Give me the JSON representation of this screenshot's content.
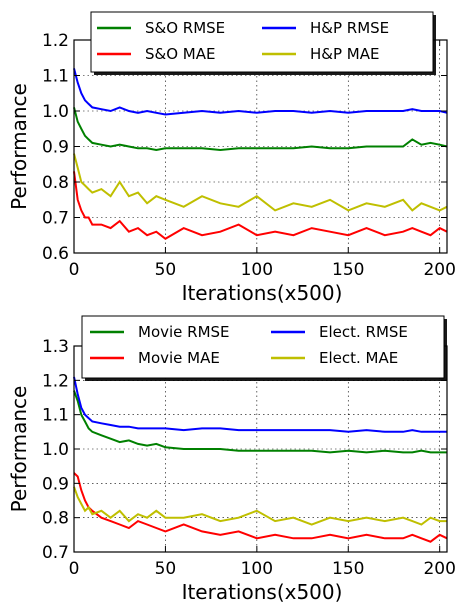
{
  "chart_data": [
    {
      "type": "line",
      "xlabel": "Iterations(x500)",
      "ylabel": "Performance",
      "xlim": [
        0,
        204
      ],
      "ylim": [
        0.6,
        1.2
      ],
      "xticks": [
        0,
        50,
        100,
        150,
        200
      ],
      "yticks": [
        0.6,
        0.7,
        0.8,
        0.9,
        1.0,
        1.1,
        1.2
      ],
      "grid": true,
      "legend_position": "top",
      "series": [
        {
          "name": "S&O RMSE",
          "color": "#008000",
          "x": [
            0,
            2,
            4,
            6,
            8,
            10,
            15,
            20,
            25,
            30,
            35,
            40,
            45,
            50,
            60,
            70,
            80,
            90,
            100,
            110,
            120,
            130,
            140,
            150,
            160,
            170,
            180,
            185,
            190,
            195,
            200,
            204
          ],
          "y": [
            1.01,
            0.97,
            0.95,
            0.93,
            0.92,
            0.91,
            0.905,
            0.9,
            0.905,
            0.9,
            0.895,
            0.895,
            0.89,
            0.895,
            0.895,
            0.895,
            0.89,
            0.895,
            0.895,
            0.895,
            0.895,
            0.9,
            0.895,
            0.895,
            0.9,
            0.9,
            0.9,
            0.92,
            0.905,
            0.91,
            0.905,
            0.9
          ]
        },
        {
          "name": "S&O MAE",
          "color": "#ff0000",
          "x": [
            0,
            2,
            4,
            6,
            8,
            10,
            15,
            20,
            25,
            30,
            35,
            40,
            45,
            50,
            60,
            70,
            80,
            90,
            100,
            110,
            120,
            130,
            140,
            150,
            160,
            170,
            180,
            185,
            190,
            195,
            200,
            204
          ],
          "y": [
            0.83,
            0.75,
            0.72,
            0.7,
            0.7,
            0.68,
            0.68,
            0.67,
            0.69,
            0.66,
            0.67,
            0.65,
            0.66,
            0.64,
            0.67,
            0.65,
            0.66,
            0.68,
            0.65,
            0.66,
            0.65,
            0.67,
            0.66,
            0.65,
            0.67,
            0.65,
            0.66,
            0.67,
            0.66,
            0.65,
            0.67,
            0.66
          ]
        },
        {
          "name": "H&P RMSE",
          "color": "#0000ff",
          "x": [
            0,
            2,
            4,
            6,
            8,
            10,
            15,
            20,
            25,
            30,
            35,
            40,
            45,
            50,
            60,
            70,
            80,
            90,
            100,
            110,
            120,
            130,
            140,
            150,
            160,
            170,
            180,
            185,
            190,
            195,
            200,
            204
          ],
          "y": [
            1.12,
            1.08,
            1.05,
            1.03,
            1.02,
            1.01,
            1.005,
            1.0,
            1.01,
            1.0,
            0.995,
            1.0,
            0.995,
            0.99,
            0.995,
            1.0,
            0.995,
            1.0,
            0.995,
            1.0,
            1.0,
            0.995,
            1.0,
            0.995,
            1.0,
            1.0,
            1.0,
            1.005,
            1.0,
            1.0,
            1.0,
            0.995
          ]
        },
        {
          "name": "H&P MAE",
          "color": "#bfbf00",
          "x": [
            0,
            2,
            4,
            6,
            8,
            10,
            15,
            20,
            25,
            30,
            35,
            40,
            45,
            50,
            60,
            70,
            80,
            90,
            100,
            110,
            120,
            130,
            140,
            150,
            160,
            170,
            180,
            185,
            190,
            195,
            200,
            204
          ],
          "y": [
            0.88,
            0.84,
            0.8,
            0.79,
            0.78,
            0.77,
            0.78,
            0.76,
            0.8,
            0.76,
            0.77,
            0.74,
            0.76,
            0.75,
            0.73,
            0.76,
            0.74,
            0.73,
            0.76,
            0.72,
            0.74,
            0.73,
            0.75,
            0.72,
            0.74,
            0.73,
            0.75,
            0.72,
            0.74,
            0.73,
            0.72,
            0.73
          ]
        }
      ]
    },
    {
      "type": "line",
      "xlabel": "Iterations(x500)",
      "ylabel": "Performance",
      "xlim": [
        0,
        204
      ],
      "ylim": [
        0.7,
        1.3
      ],
      "xticks": [
        0,
        50,
        100,
        150,
        200
      ],
      "yticks": [
        0.7,
        0.8,
        0.9,
        1.0,
        1.1,
        1.2,
        1.3
      ],
      "grid": true,
      "legend_position": "top",
      "series": [
        {
          "name": "Movie RMSE",
          "color": "#008000",
          "x": [
            0,
            2,
            4,
            6,
            8,
            10,
            15,
            20,
            25,
            30,
            35,
            40,
            45,
            50,
            60,
            70,
            80,
            90,
            100,
            110,
            120,
            130,
            140,
            150,
            160,
            170,
            180,
            185,
            190,
            195,
            200,
            204
          ],
          "y": [
            1.17,
            1.14,
            1.1,
            1.08,
            1.06,
            1.05,
            1.04,
            1.03,
            1.02,
            1.025,
            1.015,
            1.01,
            1.015,
            1.005,
            1.0,
            1.0,
            1.0,
            0.995,
            0.995,
            0.995,
            0.995,
            0.995,
            0.99,
            0.995,
            0.99,
            0.995,
            0.99,
            0.99,
            0.995,
            0.99,
            0.99,
            0.99
          ]
        },
        {
          "name": "Movie MAE",
          "color": "#ff0000",
          "x": [
            0,
            2,
            4,
            6,
            8,
            10,
            15,
            20,
            25,
            30,
            35,
            40,
            45,
            50,
            60,
            70,
            80,
            90,
            100,
            110,
            120,
            130,
            140,
            150,
            160,
            170,
            180,
            185,
            190,
            195,
            200,
            204
          ],
          "y": [
            0.93,
            0.92,
            0.88,
            0.85,
            0.83,
            0.82,
            0.8,
            0.79,
            0.78,
            0.77,
            0.79,
            0.78,
            0.77,
            0.76,
            0.78,
            0.76,
            0.75,
            0.76,
            0.74,
            0.75,
            0.74,
            0.74,
            0.75,
            0.74,
            0.75,
            0.74,
            0.74,
            0.75,
            0.74,
            0.73,
            0.75,
            0.74
          ]
        },
        {
          "name": "Elect. RMSE",
          "color": "#0000ff",
          "x": [
            0,
            2,
            4,
            6,
            8,
            10,
            15,
            20,
            25,
            30,
            35,
            40,
            45,
            50,
            60,
            70,
            80,
            90,
            100,
            110,
            120,
            130,
            140,
            150,
            160,
            170,
            180,
            185,
            190,
            195,
            200,
            204
          ],
          "y": [
            1.21,
            1.16,
            1.12,
            1.1,
            1.09,
            1.08,
            1.075,
            1.07,
            1.065,
            1.065,
            1.06,
            1.06,
            1.06,
            1.06,
            1.055,
            1.06,
            1.06,
            1.055,
            1.055,
            1.055,
            1.055,
            1.055,
            1.055,
            1.05,
            1.055,
            1.05,
            1.05,
            1.055,
            1.05,
            1.05,
            1.05,
            1.05
          ]
        },
        {
          "name": "Elect. MAE",
          "color": "#bfbf00",
          "x": [
            0,
            2,
            4,
            6,
            8,
            10,
            15,
            20,
            25,
            30,
            35,
            40,
            45,
            50,
            60,
            70,
            80,
            90,
            100,
            110,
            120,
            130,
            140,
            150,
            160,
            170,
            180,
            185,
            190,
            195,
            200,
            204
          ],
          "y": [
            0.89,
            0.86,
            0.84,
            0.82,
            0.83,
            0.81,
            0.82,
            0.8,
            0.82,
            0.79,
            0.81,
            0.8,
            0.82,
            0.8,
            0.8,
            0.81,
            0.79,
            0.8,
            0.82,
            0.79,
            0.8,
            0.78,
            0.8,
            0.79,
            0.8,
            0.79,
            0.8,
            0.79,
            0.78,
            0.8,
            0.79,
            0.79
          ]
        }
      ]
    }
  ]
}
